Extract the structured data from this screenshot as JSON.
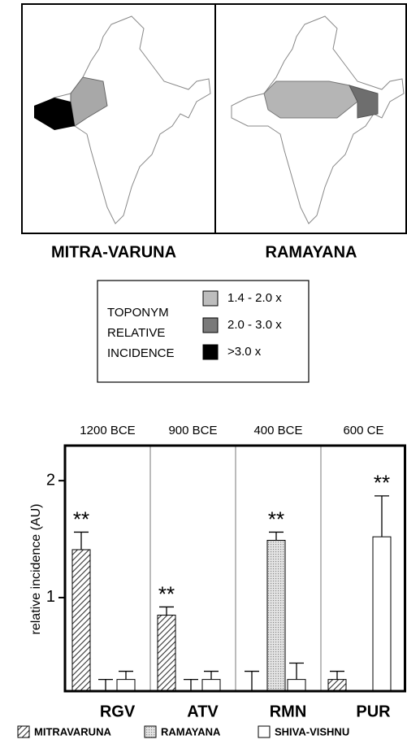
{
  "maps": [
    {
      "label": "MITRA-VARUNA"
    },
    {
      "label": "RAMAYANA"
    }
  ],
  "map_legend": {
    "title": [
      "TOPONYM",
      "RELATIVE",
      "INCIDENCE"
    ],
    "items": [
      {
        "label": "1.4 - 2.0 x",
        "color": "#bdbdbd"
      },
      {
        "label": "2.0 - 3.0 x",
        "color": "#7a7a7a"
      },
      {
        "label": ">3.0 x",
        "color": "#000000"
      }
    ]
  },
  "chart_data": {
    "type": "bar",
    "y_label": "relative incidence (AU)",
    "periods": [
      "1200 BCE",
      "900 BCE",
      "400 BCE",
      "600 CE"
    ],
    "categories": [
      "RGV",
      "ATV",
      "RMN",
      "PUR"
    ],
    "ylim": [
      0.2,
      2.3
    ],
    "yticks": [
      1,
      2
    ],
    "series": [
      {
        "name": "MITRAVARUNA",
        "color": "#555555",
        "values": [
          1.41,
          0.85,
          0.2,
          0.3
        ],
        "errors": [
          0.15,
          0.07,
          0.17,
          0.07
        ],
        "significance": [
          "**",
          "**",
          null,
          null
        ]
      },
      {
        "name": "RAMAYANA",
        "color": "#bbbbbb",
        "values": [
          0.2,
          0.2,
          1.49,
          0.2
        ],
        "errors": [
          0.1,
          0.1,
          0.07,
          0
        ],
        "significance": [
          null,
          null,
          "**",
          null
        ]
      },
      {
        "name": "SHIVA-VISHNU",
        "color": "#ffffff",
        "values": [
          0.3,
          0.3,
          0.3,
          1.52
        ],
        "errors": [
          0.07,
          0.07,
          0.14,
          0.35
        ],
        "significance": [
          null,
          null,
          null,
          "**"
        ]
      }
    ]
  }
}
